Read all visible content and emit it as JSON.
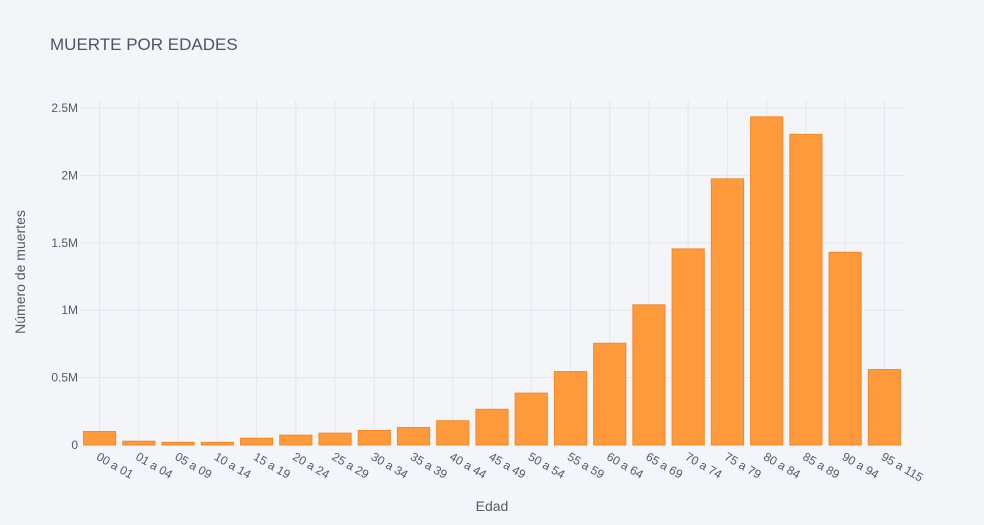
{
  "chart_data": {
    "type": "bar",
    "title": "MUERTE POR EDADES",
    "xlabel": "Edad",
    "ylabel": "Número de muertes",
    "categories": [
      "00 a 01",
      "01 a 04",
      "05 a 09",
      "10 a 14",
      "15 a 19",
      "20 a 24",
      "25 a 29",
      "30 a 34",
      "35 a 39",
      "40 a 44",
      "45 a 49",
      "50 a 54",
      "55 a 59",
      "60 a 64",
      "65 a 69",
      "70 a 74",
      "75 a 79",
      "80 a 84",
      "85 a 89",
      "90 a 94",
      "95 a 115"
    ],
    "values": [
      100000,
      28000,
      20000,
      20000,
      50000,
      73000,
      88000,
      108000,
      130000,
      180000,
      265000,
      385000,
      545000,
      755000,
      1040000,
      1455000,
      1975000,
      2435000,
      2305000,
      1430000,
      560000
    ],
    "ylim": [
      0,
      2560000
    ],
    "yticks": [
      0,
      500000,
      1000000,
      1500000,
      2000000,
      2500000
    ],
    "ytick_labels": [
      "0",
      "0.5M",
      "1M",
      "1.5M",
      "2M",
      "2.5M"
    ],
    "grid": true,
    "legend": "none",
    "colors": {
      "bar": "#ff9a3c",
      "background": "#f4f5f9",
      "grid": "#e3e6ec"
    }
  }
}
